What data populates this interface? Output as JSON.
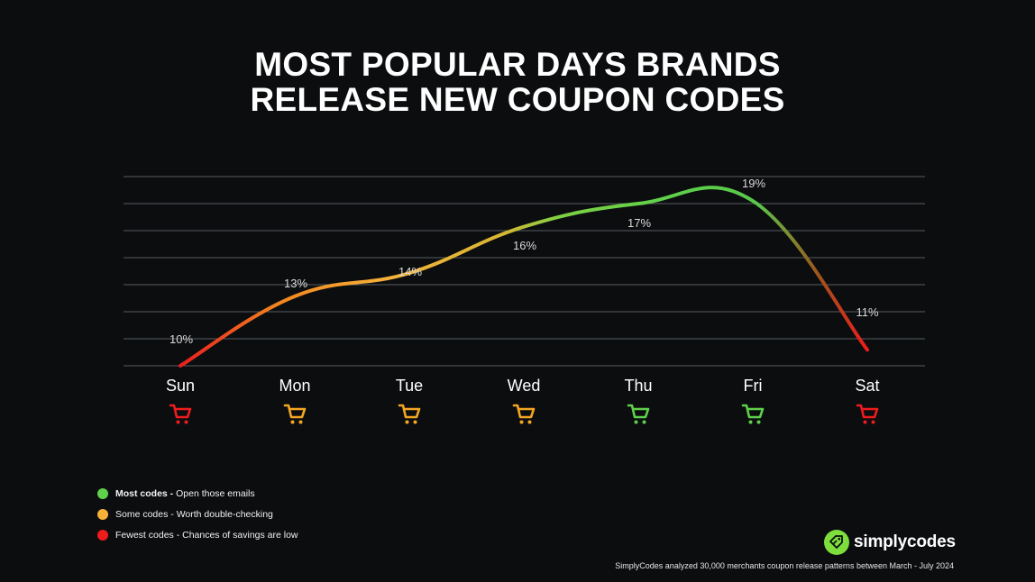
{
  "title": {
    "line1": "MOST POPULAR DAYS BRANDS",
    "line2": "RELEASE NEW COUPON CODES"
  },
  "chart_data": {
    "type": "line",
    "categories": [
      "Sun",
      "Mon",
      "Tue",
      "Wed",
      "Thu",
      "Fri",
      "Sat"
    ],
    "values": [
      10,
      13,
      14,
      16,
      17,
      19,
      11
    ],
    "value_labels": [
      "10%",
      "13%",
      "14%",
      "16%",
      "17%",
      "19%",
      "11%"
    ],
    "ylim": [
      10,
      17
    ],
    "grid": true,
    "tiers": [
      "fewest",
      "some",
      "some",
      "some",
      "most",
      "most",
      "fewest"
    ],
    "tier_colors": {
      "most": "#5fd14a",
      "some": "#f5a623",
      "fewest": "#ee1c1c"
    },
    "cart_icon": "shopping-cart-icon"
  },
  "legend": [
    {
      "tier": "most",
      "bold": "Most codes - ",
      "text": "Open those emails"
    },
    {
      "tier": "some",
      "bold": "",
      "text": "Some codes - Worth double-checking"
    },
    {
      "tier": "fewest",
      "bold": "",
      "text": "Fewest codes - Chances of savings are low"
    }
  ],
  "brand": {
    "name": "simplycodes",
    "icon": "coupon-tag-icon",
    "color": "#7dde3c"
  },
  "footnote": "SimplyCodes analyzed 30,000 merchants coupon release patterns  between March - July 2024"
}
